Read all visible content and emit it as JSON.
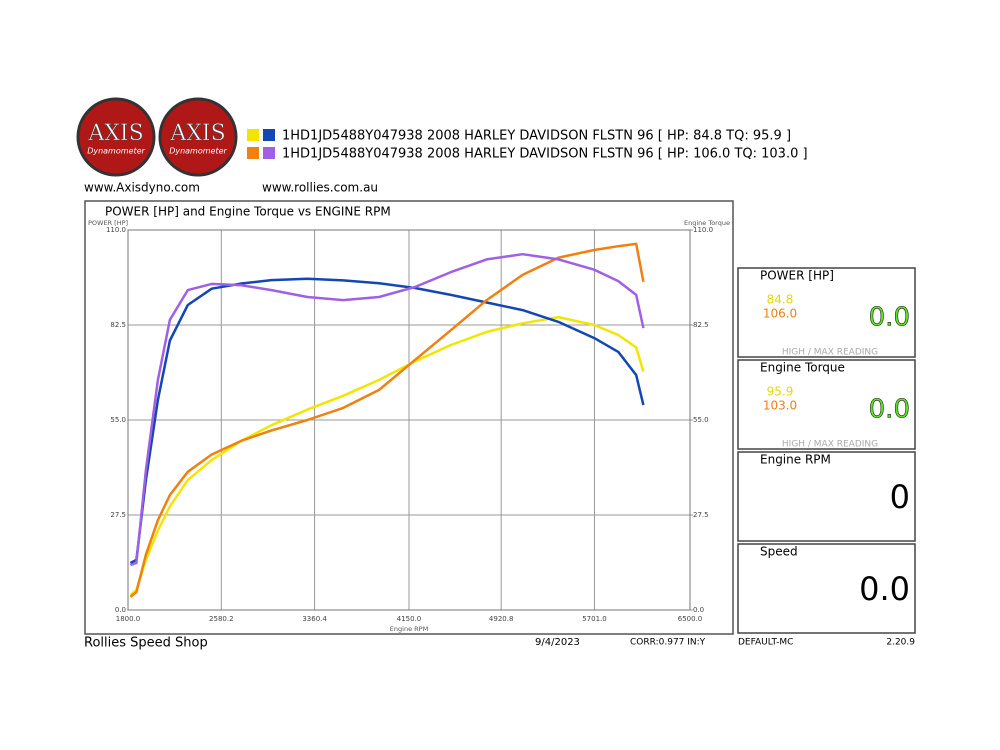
{
  "header": {
    "logos": [
      {
        "brand": "AXIS",
        "sub": "Dynamometer"
      },
      {
        "brand": "AXIS",
        "sub": "Dynamometer"
      }
    ],
    "links": [
      "www.Axisdyno.com",
      "www.rollies.com.au"
    ]
  },
  "chart_data": {
    "type": "line",
    "title": "POWER [HP] and Engine Torque vs ENGINE RPM",
    "y_label": "POWER [HP]",
    "y2_label": "Engine Torque",
    "x_label": "Engine RPM",
    "legend": [
      {
        "label": "1HD1JD5488Y047938 2008 HARLEY DAVIDSON FLSTN 96 [ HP: 84.8 TQ: 95.9 ]",
        "colors": [
          "#f2e600",
          "#1446b4"
        ]
      },
      {
        "label": "1HD1JD5488Y047938 2008 HARLEY DAVIDSON FLSTN 96 [ HP: 106.0 TQ: 103.0 ]",
        "colors": [
          "#f08010",
          "#a060e6"
        ]
      }
    ],
    "x": [
      1820,
      1870,
      1950,
      2050,
      2150,
      2300,
      2500,
      2750,
      3000,
      3300,
      3600,
      3900,
      4200,
      4500,
      4800,
      5100,
      5400,
      5700,
      5900,
      6050,
      6110
    ],
    "series": [
      {
        "color": "#f2e600",
        "values": [
          4.3,
          5.8,
          14.5,
          23,
          30,
          37.6,
          43.4,
          49,
          53.5,
          58,
          62,
          66.6,
          72,
          76.7,
          80.5,
          83,
          84.8,
          82.5,
          79.6,
          76,
          69
        ]
      },
      {
        "color": "#1446b4",
        "axis": "y2",
        "values": [
          13.6,
          14.5,
          37.6,
          60.8,
          78,
          88.3,
          93,
          94.5,
          95.5,
          95.9,
          95.4,
          94.6,
          93.2,
          91.2,
          89,
          86.8,
          83.4,
          78.7,
          74.7,
          68,
          59.3
        ]
      },
      {
        "color": "#f08010",
        "values": [
          3.8,
          5.2,
          16,
          26,
          33.3,
          40,
          45,
          49,
          52,
          55,
          58.5,
          63.7,
          72.4,
          81,
          89.7,
          97,
          102,
          104.2,
          105.3,
          106,
          95
        ]
      },
      {
        "color": "#a060e6",
        "axis": "y2",
        "values": [
          13,
          13.6,
          40.5,
          66.6,
          84,
          92.6,
          94.4,
          94,
          92.6,
          90.6,
          89.7,
          90.6,
          93.5,
          97.8,
          101.5,
          103,
          101.5,
          98.5,
          95.2,
          91.2,
          81.6
        ]
      }
    ],
    "xlim": [
      1800,
      6500
    ],
    "xticks": [
      {
        "value": 1800,
        "label": "1800.0"
      },
      2580.2,
      3360.4,
      {
        "value": 4150,
        "label": "4150.0"
      },
      4920.8,
      {
        "value": 5701,
        "label": "5701.0"
      },
      {
        "value": 6500,
        "label": "6500.0"
      }
    ],
    "ylim": [
      0,
      110
    ],
    "yticks": [
      {
        "value": 0,
        "label": "0.0"
      },
      27.5,
      {
        "value": 55,
        "label": "55.0"
      },
      82.5,
      {
        "value": 110,
        "label": "110.0"
      }
    ],
    "y2lim": [
      0,
      110
    ],
    "y2ticks": [
      {
        "value": 0,
        "label": "0.0"
      },
      27.5,
      {
        "value": 55,
        "label": "55.0"
      },
      82.5,
      {
        "value": 110,
        "label": "110.0"
      }
    ],
    "grid": true
  },
  "panels": [
    {
      "title": "POWER [HP]",
      "readings": [
        {
          "text": "84.8",
          "color": "#e6d800"
        },
        {
          "text": "106.0",
          "color": "#f08010"
        }
      ],
      "current": "0.0",
      "current_color": "#5ae61e",
      "note": "HIGH / MAX READING"
    },
    {
      "title": "Engine Torque",
      "readings": [
        {
          "text": "95.9",
          "color": "#e6d800"
        },
        {
          "text": "103.0",
          "color": "#f08010"
        }
      ],
      "current": "0.0",
      "current_color": "#5ae61e",
      "note": "HIGH / MAX READING"
    },
    {
      "title": "Engine RPM",
      "current": "0",
      "current_color": "#000000"
    },
    {
      "title": "Speed",
      "current": "0.0",
      "current_color": "#000000"
    }
  ],
  "footer": {
    "shop": "Rollies Speed Shop",
    "date": "9/4/2023",
    "corr": "CORR:0.977 IN:Y",
    "profile": "DEFAULT-MC",
    "version": "2.20.9"
  }
}
